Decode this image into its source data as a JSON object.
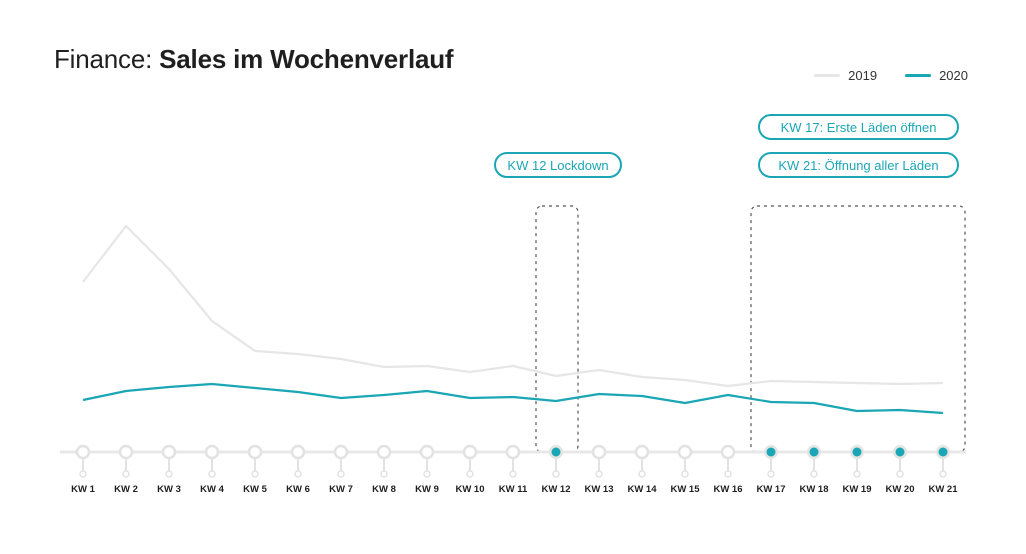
{
  "title": {
    "prefix": "Finance:",
    "main": "Sales im Wochenverlauf"
  },
  "legend": [
    {
      "name": "2019",
      "color": "#e6e6e6"
    },
    {
      "name": "2020",
      "color": "#1ba6b6"
    }
  ],
  "annotations": [
    {
      "text": "KW 12 Lockdown"
    },
    {
      "text": "KW 17: Erste Läden öffnen"
    },
    {
      "text": "KW 21: Öffnung aller Läden"
    }
  ],
  "chart_data": {
    "type": "line",
    "categories": [
      "KW 1",
      "KW 2",
      "KW 3",
      "KW 4",
      "KW 5",
      "KW 6",
      "KW 7",
      "KW 8",
      "KW 9",
      "KW 10",
      "KW 11",
      "KW 12",
      "KW 13",
      "KW 14",
      "KW 15",
      "KW 16",
      "KW 17",
      "KW 18",
      "KW 19",
      "KW 20",
      "KW 21"
    ],
    "series": [
      {
        "name": "2019",
        "color": "#e6e6e6",
        "values": [
          170,
          226,
          183,
          131,
          101,
          98,
          93,
          85,
          86,
          80,
          86,
          76,
          82,
          75,
          72,
          66,
          71,
          70,
          69,
          68,
          69
        ]
      },
      {
        "name": "2020",
        "color": "#1ba6b6",
        "values": [
          52,
          61,
          65,
          68,
          64,
          60,
          54,
          57,
          61,
          54,
          55,
          51,
          58,
          56,
          49,
          57,
          50,
          49,
          41,
          42,
          39
        ]
      }
    ],
    "highlight_points": [
      "KW 12",
      "KW 17",
      "KW 18",
      "KW 19",
      "KW 20",
      "KW 21"
    ],
    "highlight_ranges": [
      [
        "KW 12",
        "KW 12"
      ],
      [
        "KW 17",
        "KW 21"
      ]
    ],
    "ylim": [
      0,
      260
    ],
    "grid": false,
    "legend_position": "top-right"
  }
}
